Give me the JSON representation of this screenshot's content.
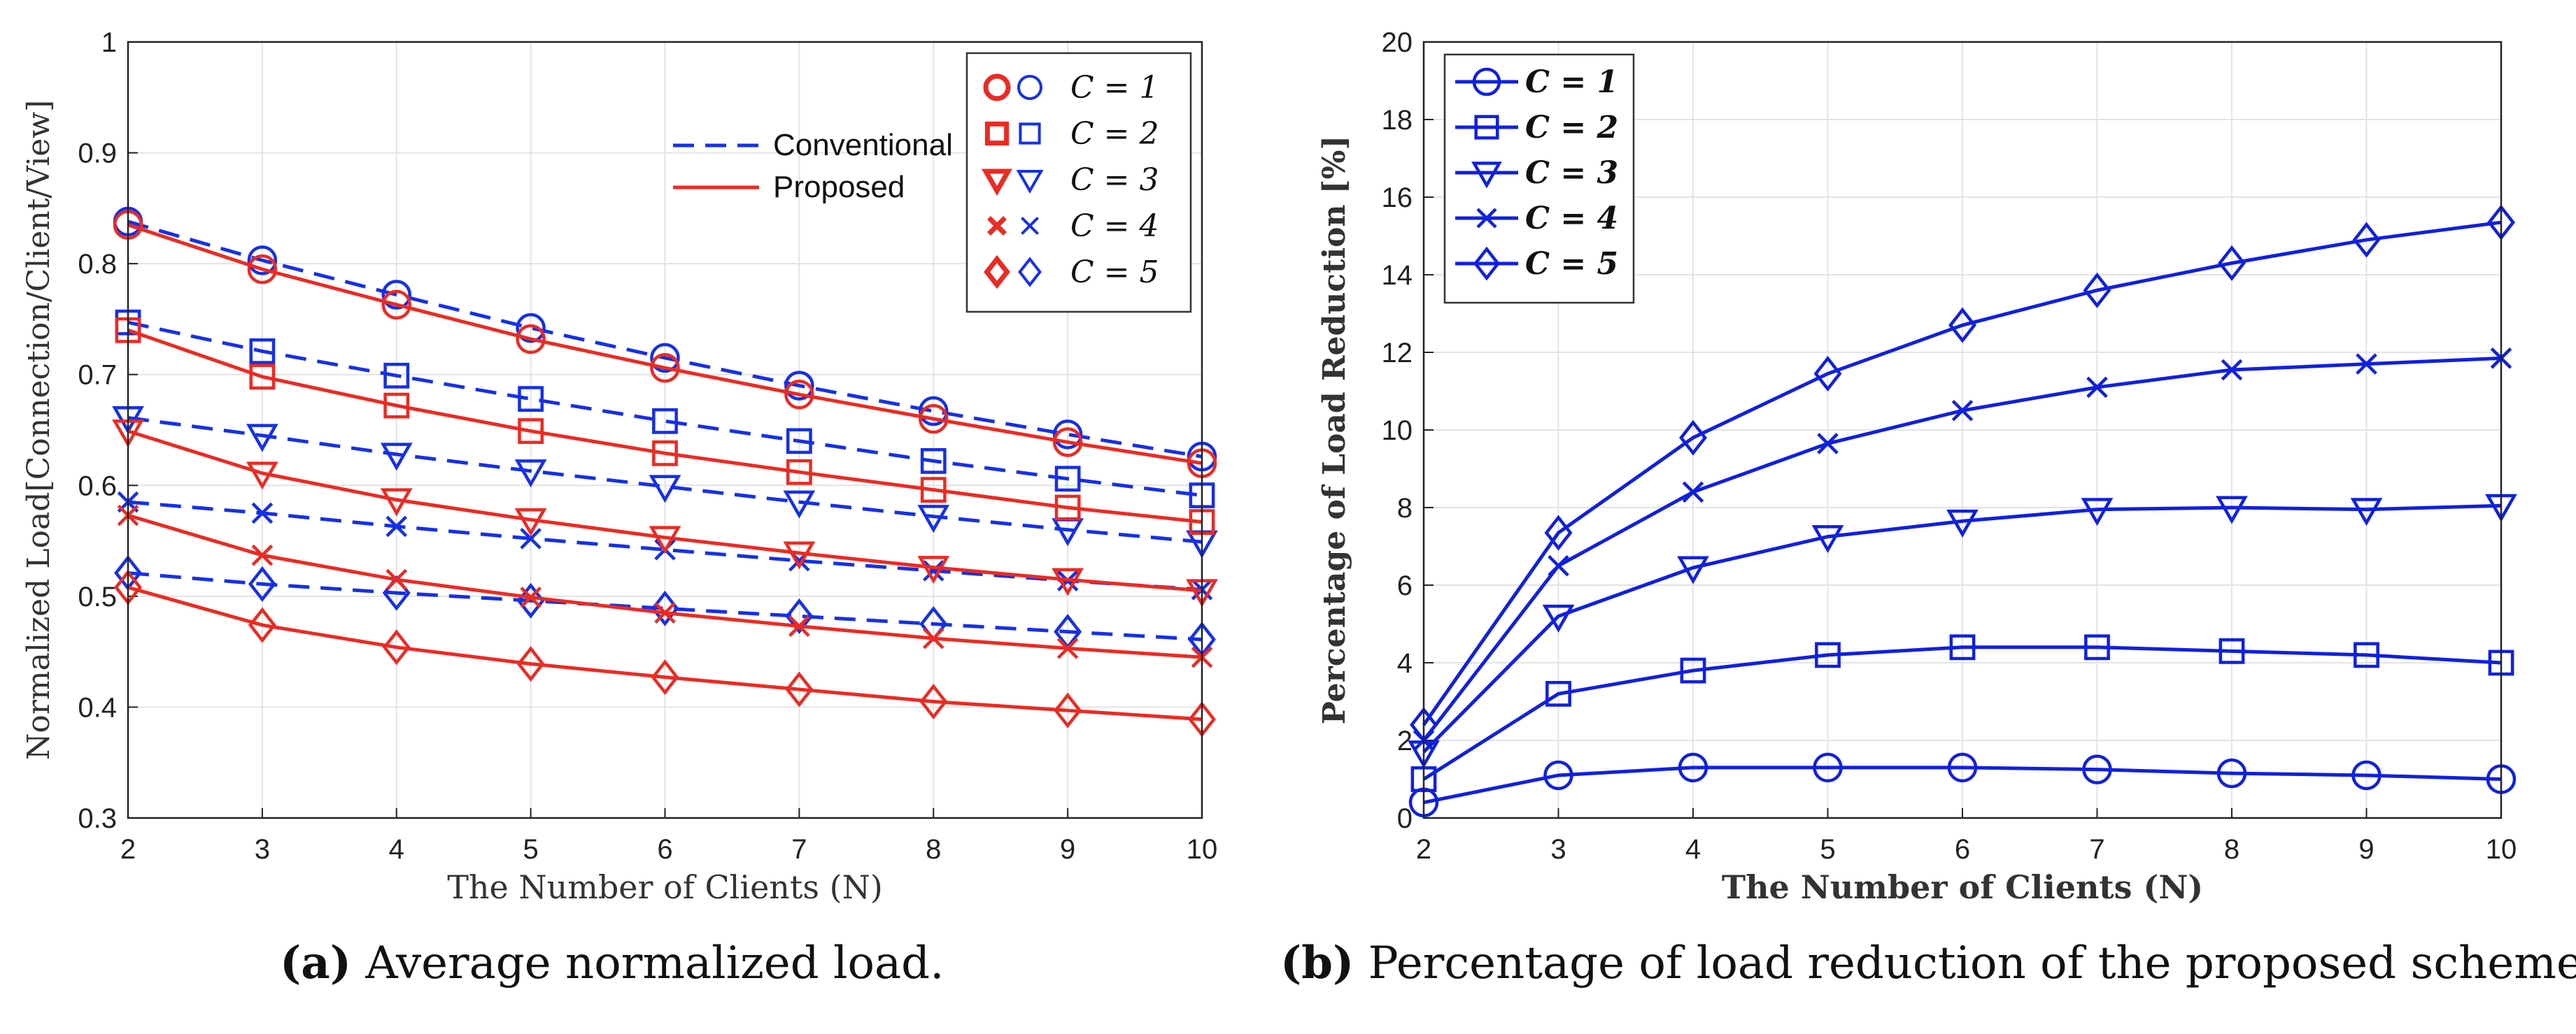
{
  "colors": {
    "conventional": "#1530e8",
    "proposed": "#ec2a22",
    "reduction": "#1020e0",
    "grid": "#e3e3e3",
    "axis": "#222222"
  },
  "chart_data": [
    {
      "id": "a",
      "type": "line",
      "xlabel": "The Number of Clients (N)",
      "ylabel": "Normalized Load[Connection/Client/View]",
      "x": [
        2,
        3,
        4,
        5,
        6,
        7,
        8,
        9,
        10
      ],
      "xlim": [
        2,
        10
      ],
      "ylim": [
        0.3,
        1
      ],
      "xticks": [
        "2",
        "3",
        "4",
        "5",
        "6",
        "7",
        "8",
        "9",
        "10"
      ],
      "yticks": [
        "0.3",
        "0.4",
        "0.5",
        "0.6",
        "0.7",
        "0.8",
        "0.9",
        "1"
      ],
      "grid": true,
      "legend_markers": [
        {
          "label": "C = 1",
          "marker": "circle"
        },
        {
          "label": "C = 2",
          "marker": "square"
        },
        {
          "label": "C = 3",
          "marker": "triangle-down"
        },
        {
          "label": "C = 4",
          "marker": "x"
        },
        {
          "label": "C = 5",
          "marker": "diamond"
        }
      ],
      "legend_lines": [
        {
          "label": "Conventional",
          "style": "dashed",
          "color_key": "conventional"
        },
        {
          "label": "Proposed",
          "style": "solid",
          "color_key": "proposed"
        }
      ],
      "series": [
        {
          "name": "Conventional C = 1",
          "scheme": "conventional",
          "marker": "circle",
          "values": [
            0.838,
            0.803,
            0.772,
            0.742,
            0.715,
            0.69,
            0.667,
            0.646,
            0.626
          ]
        },
        {
          "name": "Conventional C = 2",
          "scheme": "conventional",
          "marker": "square",
          "values": [
            0.747,
            0.721,
            0.699,
            0.678,
            0.658,
            0.64,
            0.622,
            0.606,
            0.591
          ]
        },
        {
          "name": "Conventional C = 3",
          "scheme": "conventional",
          "marker": "triangle-down",
          "values": [
            0.661,
            0.645,
            0.628,
            0.613,
            0.599,
            0.585,
            0.572,
            0.56,
            0.549
          ]
        },
        {
          "name": "Conventional C = 4",
          "scheme": "conventional",
          "marker": "x",
          "values": [
            0.585,
            0.575,
            0.563,
            0.552,
            0.542,
            0.532,
            0.523,
            0.514,
            0.506
          ]
        },
        {
          "name": "Conventional C = 5",
          "scheme": "conventional",
          "marker": "diamond",
          "values": [
            0.521,
            0.511,
            0.503,
            0.496,
            0.489,
            0.482,
            0.475,
            0.468,
            0.461
          ]
        },
        {
          "name": "Proposed C = 1",
          "scheme": "proposed",
          "marker": "circle",
          "values": [
            0.835,
            0.795,
            0.763,
            0.732,
            0.706,
            0.682,
            0.66,
            0.639,
            0.62
          ]
        },
        {
          "name": "Proposed C = 2",
          "scheme": "proposed",
          "marker": "square",
          "values": [
            0.74,
            0.698,
            0.672,
            0.649,
            0.629,
            0.612,
            0.596,
            0.58,
            0.567
          ]
        },
        {
          "name": "Proposed C = 3",
          "scheme": "proposed",
          "marker": "triangle-down",
          "values": [
            0.649,
            0.611,
            0.587,
            0.569,
            0.553,
            0.539,
            0.526,
            0.515,
            0.505
          ]
        },
        {
          "name": "Proposed C = 4",
          "scheme": "proposed",
          "marker": "x",
          "values": [
            0.573,
            0.537,
            0.515,
            0.499,
            0.485,
            0.473,
            0.462,
            0.453,
            0.445
          ]
        },
        {
          "name": "Proposed C = 5",
          "scheme": "proposed",
          "marker": "diamond",
          "values": [
            0.508,
            0.474,
            0.454,
            0.439,
            0.427,
            0.416,
            0.405,
            0.397,
            0.389
          ]
        }
      ]
    },
    {
      "id": "b",
      "type": "line",
      "xlabel": "The Number of Clients (N)",
      "ylabel": "Percentage of Load Reduction [%]",
      "x": [
        2,
        3,
        4,
        5,
        6,
        7,
        8,
        9,
        10
      ],
      "xlim": [
        2,
        10
      ],
      "ylim": [
        0,
        20
      ],
      "xticks": [
        "2",
        "3",
        "4",
        "5",
        "6",
        "7",
        "8",
        "9",
        "10"
      ],
      "yticks": [
        "0",
        "2",
        "4",
        "6",
        "8",
        "10",
        "12",
        "14",
        "16",
        "18",
        "20"
      ],
      "grid": true,
      "legend_markers": [
        {
          "label": "C = 1",
          "marker": "circle"
        },
        {
          "label": "C = 2",
          "marker": "square"
        },
        {
          "label": "C = 3",
          "marker": "triangle-down"
        },
        {
          "label": "C = 4",
          "marker": "x"
        },
        {
          "label": "C = 5",
          "marker": "diamond"
        }
      ],
      "series": [
        {
          "name": "C = 1",
          "marker": "circle",
          "values": [
            0.4,
            1.1,
            1.3,
            1.3,
            1.3,
            1.25,
            1.15,
            1.1,
            1.0
          ]
        },
        {
          "name": "C = 2",
          "marker": "square",
          "values": [
            1.0,
            3.2,
            3.8,
            4.2,
            4.4,
            4.4,
            4.3,
            4.2,
            4.0
          ]
        },
        {
          "name": "C = 3",
          "marker": "triangle-down",
          "values": [
            1.7,
            5.2,
            6.45,
            7.25,
            7.65,
            7.95,
            8.0,
            7.95,
            8.05
          ]
        },
        {
          "name": "C = 4",
          "marker": "x",
          "values": [
            2.0,
            6.5,
            8.4,
            9.65,
            10.5,
            11.1,
            11.55,
            11.7,
            11.85
          ]
        },
        {
          "name": "C = 5",
          "marker": "diamond",
          "values": [
            2.4,
            7.35,
            9.8,
            11.45,
            12.7,
            13.6,
            14.3,
            14.9,
            15.35
          ]
        }
      ]
    }
  ],
  "captions": [
    {
      "tag": "(a)",
      "text": " Average normalized load."
    },
    {
      "tag": "(b)",
      "text": " Percentage of load reduction of the proposed scheme."
    }
  ]
}
